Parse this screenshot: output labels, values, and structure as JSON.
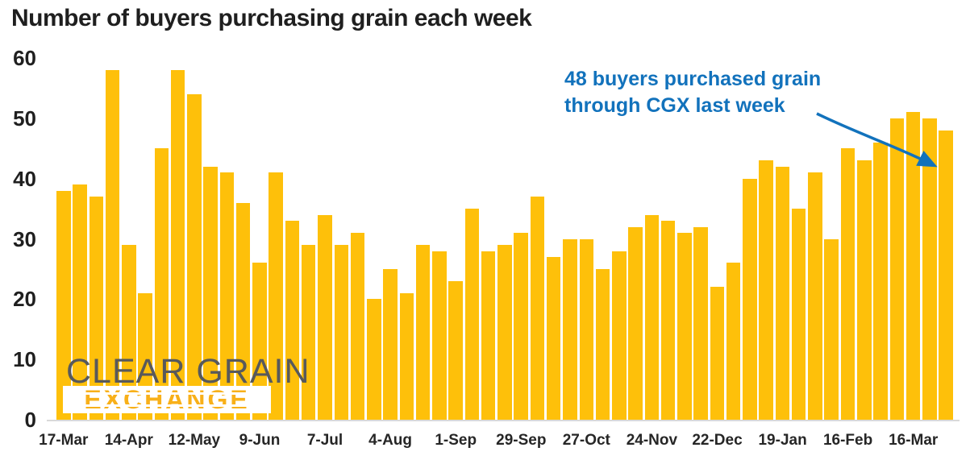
{
  "title": "Number of buyers purchasing grain each week",
  "annotation": {
    "line1": "48 buyers purchased grain",
    "line2": "through CGX last week"
  },
  "watermark": {
    "line1": "CLEAR GRAIN",
    "line2": "EXCHANGE"
  },
  "colors": {
    "bar": "#fec00a",
    "annotation_blue": "#1272bc",
    "watermark_gray": "#58595b",
    "watermark_yellow": "#f8b019",
    "axis_text": "#1f1f1f",
    "baseline_gray": "#d9d9d9"
  },
  "chart_data": {
    "type": "bar",
    "title": "Number of buyers purchasing grain each week",
    "xlabel": "",
    "ylabel": "",
    "ylim": [
      0,
      60
    ],
    "y_ticks": [
      0,
      10,
      20,
      30,
      40,
      50,
      60
    ],
    "grid": false,
    "legend": false,
    "x_tick_labels": [
      "17-Mar",
      "14-Apr",
      "12-May",
      "9-Jun",
      "7-Jul",
      "4-Aug",
      "1-Sep",
      "29-Sep",
      "27-Oct",
      "24-Nov",
      "22-Dec",
      "19-Jan",
      "16-Feb",
      "16-Mar"
    ],
    "x_tick_every_n_bars": 4,
    "values": [
      38,
      39,
      37,
      58,
      29,
      21,
      45,
      58,
      54,
      42,
      41,
      36,
      26,
      41,
      33,
      29,
      34,
      29,
      31,
      20,
      25,
      21,
      29,
      28,
      23,
      35,
      28,
      29,
      31,
      37,
      27,
      30,
      30,
      25,
      28,
      32,
      34,
      33,
      31,
      32,
      22,
      26,
      40,
      43,
      42,
      35,
      41,
      30,
      45,
      43,
      46,
      50,
      51,
      50,
      48
    ],
    "last_bar_callout_value": 48
  }
}
